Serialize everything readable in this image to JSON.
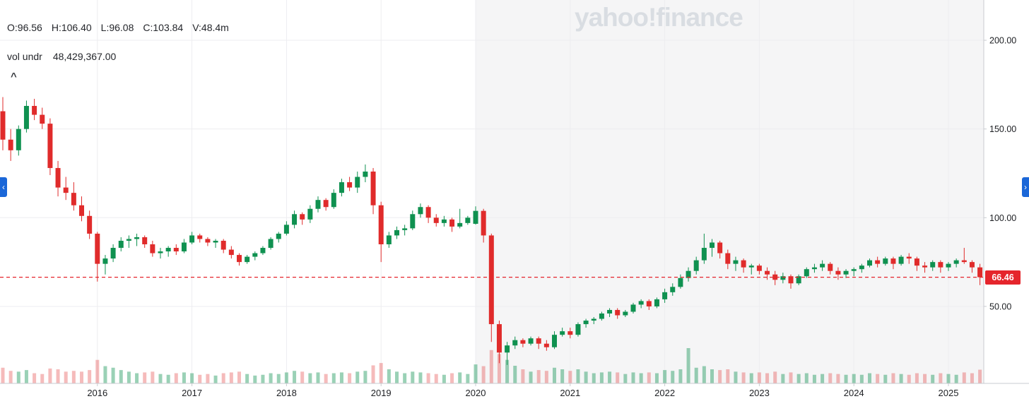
{
  "watermark": "yahoo!finance",
  "overlay": {
    "readout": {
      "open": "O:96.56",
      "high": "H:106.40",
      "low": "L:96.08",
      "close": "C:103.84",
      "volume": "V:48.4m"
    },
    "indicator": {
      "label": "vol undr",
      "value": "48,429,367.00"
    },
    "collapse_glyph": "^"
  },
  "nav": {
    "left_glyph": "‹",
    "right_glyph": "›"
  },
  "chart_data": {
    "type": "candlestick",
    "interval": "1mo",
    "start_month": "2015-01",
    "candle_format": [
      "open",
      "high",
      "low",
      "close",
      "volume"
    ],
    "x_axis": {
      "ticks": [
        {
          "label": "2016",
          "index": 12
        },
        {
          "label": "2017",
          "index": 24
        },
        {
          "label": "2018",
          "index": 36
        },
        {
          "label": "2019",
          "index": 48
        },
        {
          "label": "2020",
          "index": 60
        },
        {
          "label": "2021",
          "index": 72
        },
        {
          "label": "2022",
          "index": 84
        },
        {
          "label": "2023",
          "index": 96
        },
        {
          "label": "2024",
          "index": 108
        },
        {
          "label": "2025",
          "index": 120
        }
      ]
    },
    "y_axis": {
      "ticks": [
        {
          "label": "200.00",
          "value": 200
        },
        {
          "label": "150.00",
          "value": 150
        },
        {
          "label": "100.00",
          "value": 100
        },
        {
          "label": "50.00",
          "value": 50
        }
      ],
      "range": [
        6.6,
        222.7
      ]
    },
    "price_line": {
      "value": 66.46,
      "label": "66.46"
    },
    "shade_from_index": 60,
    "colors": {
      "up": "#0f9150",
      "down": "#e02b2b",
      "volume_up": "rgba(15,145,80,0.42)",
      "volume_down": "rgba(224,43,43,0.32)",
      "grid": "#ededf0",
      "axis": "#c9cbd0",
      "shade": "#f5f5f6",
      "price_line": "#e5252c",
      "label": "#1d1f23"
    },
    "candles": [
      [
        160,
        168,
        138,
        144,
        40
      ],
      [
        144,
        150,
        132,
        138,
        32
      ],
      [
        138,
        152,
        135,
        150,
        30
      ],
      [
        150,
        166,
        148,
        163,
        34
      ],
      [
        163,
        167,
        155,
        158,
        26
      ],
      [
        158,
        162,
        150,
        153,
        24
      ],
      [
        153,
        156,
        124,
        128,
        38
      ],
      [
        128,
        132,
        112,
        117,
        36
      ],
      [
        117,
        123,
        110,
        114,
        30
      ],
      [
        114,
        120,
        104,
        107,
        32
      ],
      [
        107,
        112,
        98,
        101,
        30
      ],
      [
        101,
        104,
        88,
        91,
        34
      ],
      [
        91,
        92,
        64,
        74,
        60
      ],
      [
        74,
        79,
        68,
        77,
        44
      ],
      [
        77,
        85,
        75,
        83,
        40
      ],
      [
        83,
        89,
        81,
        87,
        34
      ],
      [
        87,
        90,
        83,
        88,
        30
      ],
      [
        88,
        91,
        84,
        89,
        26
      ],
      [
        89,
        90,
        83,
        85,
        28
      ],
      [
        85,
        87,
        78,
        80,
        30
      ],
      [
        80,
        83,
        77,
        81,
        24
      ],
      [
        81,
        84,
        78,
        83,
        22
      ],
      [
        83,
        85,
        79,
        81,
        26
      ],
      [
        81,
        88,
        80,
        86,
        28
      ],
      [
        86,
        92,
        85,
        90,
        26
      ],
      [
        90,
        91,
        86,
        88,
        22
      ],
      [
        88,
        89,
        84,
        86,
        24
      ],
      [
        86,
        88,
        83,
        87,
        20
      ],
      [
        87,
        88,
        80,
        82,
        26
      ],
      [
        82,
        84,
        77,
        79,
        28
      ],
      [
        79,
        80,
        73,
        75,
        30
      ],
      [
        75,
        79,
        74,
        78,
        24
      ],
      [
        78,
        81,
        76,
        80,
        20
      ],
      [
        80,
        84,
        79,
        83,
        22
      ],
      [
        83,
        89,
        82,
        88,
        26
      ],
      [
        88,
        92,
        86,
        91,
        24
      ],
      [
        91,
        98,
        90,
        96,
        28
      ],
      [
        96,
        104,
        94,
        102,
        32
      ],
      [
        102,
        103,
        96,
        99,
        30
      ],
      [
        99,
        107,
        97,
        105,
        26
      ],
      [
        105,
        112,
        103,
        110,
        28
      ],
      [
        110,
        111,
        104,
        106,
        24
      ],
      [
        106,
        116,
        105,
        114,
        26
      ],
      [
        114,
        122,
        112,
        120,
        28
      ],
      [
        120,
        123,
        115,
        117,
        26
      ],
      [
        117,
        126,
        114,
        123,
        30
      ],
      [
        123,
        130,
        120,
        126,
        32
      ],
      [
        126,
        128,
        102,
        107,
        46
      ],
      [
        107,
        109,
        75,
        85,
        52
      ],
      [
        85,
        92,
        83,
        90,
        36
      ],
      [
        90,
        95,
        88,
        93,
        30
      ],
      [
        93,
        96,
        90,
        94,
        26
      ],
      [
        94,
        104,
        93,
        102,
        30
      ],
      [
        102,
        108,
        100,
        106,
        28
      ],
      [
        106,
        107,
        97,
        100,
        26
      ],
      [
        100,
        102,
        95,
        97,
        24
      ],
      [
        97,
        101,
        95,
        99,
        22
      ],
      [
        99,
        100,
        92,
        95,
        26
      ],
      [
        95,
        105,
        94,
        97,
        28
      ],
      [
        97,
        101,
        96,
        100,
        24
      ],
      [
        96.56,
        106.4,
        96.08,
        103.84,
        48.4
      ],
      [
        103.84,
        105,
        86,
        90,
        44
      ],
      [
        90,
        91,
        30,
        40,
        85
      ],
      [
        40,
        42,
        18,
        24,
        75
      ],
      [
        24,
        30,
        17,
        28,
        60
      ],
      [
        28,
        33,
        26,
        31,
        45
      ],
      [
        31,
        32,
        27,
        29,
        36
      ],
      [
        29,
        33,
        28,
        32,
        30
      ],
      [
        32,
        33,
        26,
        29,
        34
      ],
      [
        29,
        31,
        25,
        27,
        32
      ],
      [
        27,
        36,
        26,
        34,
        40
      ],
      [
        34,
        38,
        33,
        36,
        36
      ],
      [
        36,
        38,
        32,
        34,
        32
      ],
      [
        34,
        41,
        33,
        40,
        36
      ],
      [
        40,
        43,
        38,
        42,
        30
      ],
      [
        42,
        44,
        40,
        43,
        26
      ],
      [
        43,
        47,
        42,
        46,
        28
      ],
      [
        46,
        49,
        44,
        48,
        30
      ],
      [
        48,
        49,
        43,
        45,
        28
      ],
      [
        45,
        48,
        44,
        47,
        24
      ],
      [
        47,
        52,
        46,
        51,
        28
      ],
      [
        51,
        54,
        49,
        53,
        26
      ],
      [
        53,
        54,
        48,
        50,
        28
      ],
      [
        50,
        55,
        49,
        54,
        26
      ],
      [
        54,
        60,
        52,
        58,
        34
      ],
      [
        58,
        63,
        56,
        61,
        32
      ],
      [
        61,
        68,
        60,
        66,
        36
      ],
      [
        66,
        72,
        64,
        70,
        90
      ],
      [
        70,
        78,
        68,
        76,
        40
      ],
      [
        76,
        91,
        74,
        83,
        44
      ],
      [
        83,
        88,
        78,
        86,
        36
      ],
      [
        86,
        87,
        77,
        80,
        34
      ],
      [
        80,
        82,
        71,
        74,
        36
      ],
      [
        74,
        78,
        70,
        76,
        30
      ],
      [
        76,
        77,
        69,
        72,
        28
      ],
      [
        72,
        74,
        68,
        73,
        26
      ],
      [
        73,
        74,
        68,
        70,
        28
      ],
      [
        70,
        72,
        65,
        68,
        26
      ],
      [
        68,
        70,
        62,
        65,
        30
      ],
      [
        65,
        69,
        63,
        67,
        24
      ],
      [
        67,
        68,
        60,
        63,
        28
      ],
      [
        63,
        68,
        62,
        67,
        24
      ],
      [
        67,
        72,
        66,
        71,
        26
      ],
      [
        71,
        74,
        69,
        72,
        22
      ],
      [
        72,
        76,
        70,
        74,
        24
      ],
      [
        74,
        75,
        68,
        70,
        26
      ],
      [
        70,
        72,
        65,
        68,
        24
      ],
      [
        68,
        71,
        66,
        70,
        22
      ],
      [
        70,
        72,
        67,
        71,
        24
      ],
      [
        71,
        74,
        69,
        73,
        22
      ],
      [
        73,
        77,
        72,
        76,
        26
      ],
      [
        76,
        78,
        72,
        74,
        24
      ],
      [
        74,
        78,
        73,
        77,
        22
      ],
      [
        77,
        78,
        71,
        74,
        26
      ],
      [
        74,
        79,
        73,
        78,
        24
      ],
      [
        78,
        80,
        74,
        77,
        22
      ],
      [
        77,
        78,
        70,
        73,
        26
      ],
      [
        73,
        75,
        69,
        72,
        24
      ],
      [
        72,
        76,
        70,
        75,
        22
      ],
      [
        75,
        76,
        69,
        72,
        26
      ],
      [
        72,
        75,
        70,
        74,
        24
      ],
      [
        74,
        77,
        72,
        76,
        22
      ],
      [
        76,
        83,
        74,
        75,
        28
      ],
      [
        75,
        76,
        69,
        72,
        26
      ],
      [
        72,
        74,
        62,
        66.46,
        35
      ]
    ]
  }
}
